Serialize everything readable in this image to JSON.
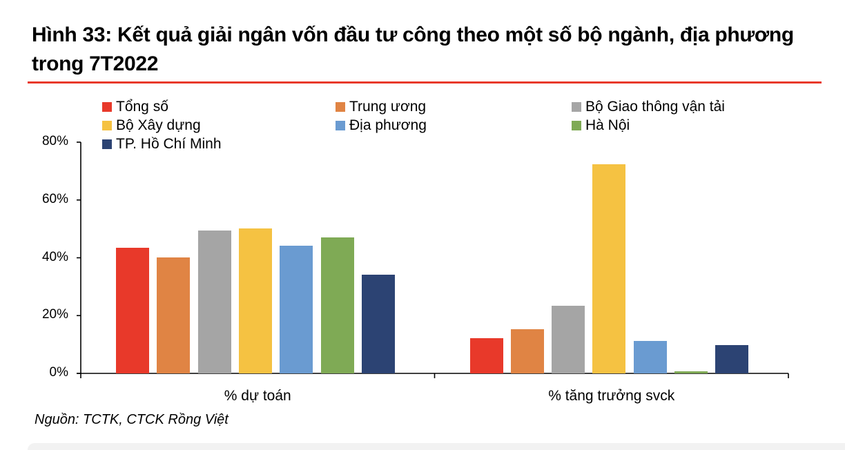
{
  "title": "Hình 33: Kết quả giải ngân vốn đầu tư công theo một số bộ ngành, địa phương trong 7T2022",
  "source": "Nguồn: TCTK, CTCK Rồng Việt",
  "accent_color": "#e8392a",
  "chart_data": {
    "type": "bar",
    "title": "Hình 33: Kết quả giải ngân vốn đầu tư công theo một số bộ ngành, địa phương trong 7T2022",
    "xlabel": "",
    "ylabel": "",
    "categories": [
      "% dự toán",
      "% tăng trưởng svck"
    ],
    "yticks": [
      "0%",
      "20%",
      "40%",
      "60%",
      "80%"
    ],
    "ylim": [
      0,
      80
    ],
    "grid": false,
    "legend_position": "top",
    "series": [
      {
        "name": "Tổng số",
        "color": "#e8392a",
        "values": [
          43.5,
          12.1
        ]
      },
      {
        "name": "Trung ương",
        "color": "#e08444",
        "values": [
          40.2,
          15.3
        ]
      },
      {
        "name": "Bộ Giao thông vận tải",
        "color": "#a5a5a5",
        "values": [
          49.5,
          23.4
        ]
      },
      {
        "name": "Bộ Xây dựng",
        "color": "#f5c242",
        "values": [
          50.2,
          72.4
        ]
      },
      {
        "name": "Địa phương",
        "color": "#6a9bd1",
        "values": [
          44.2,
          11.2
        ]
      },
      {
        "name": "Hà Nội",
        "color": "#7faa55",
        "values": [
          47.1,
          0.7
        ]
      },
      {
        "name": "TP. Hồ Chí Minh",
        "color": "#2c4373",
        "values": [
          34.2,
          9.8
        ]
      }
    ]
  }
}
